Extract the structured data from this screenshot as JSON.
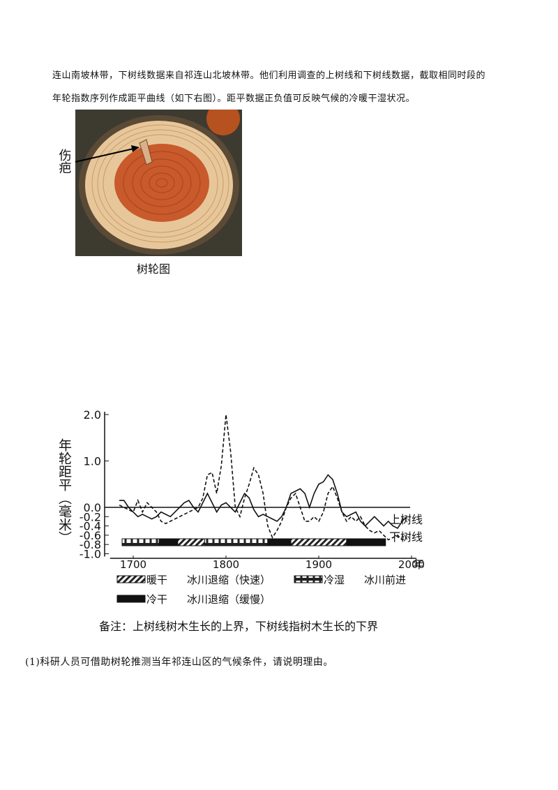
{
  "paragraphs": [
    "连山南坡林带，下树线数据来自祁连山北坡林带。他们利用调查的上树线和下树线数据，截取相同时段的",
    "年轮指数序列作成距平曲线（如下右图）。距平数据正负值可反映气候的冷暖干湿状况。"
  ],
  "photo": {
    "label": "伤疤",
    "caption": "树轮图"
  },
  "chart_data": {
    "type": "line",
    "y_label": "年轮距平（毫米）",
    "x_unit": "年",
    "xlim": [
      1675,
      2005
    ],
    "xticks": [
      1700,
      1800,
      1900,
      2000
    ],
    "ylim": [
      -1.0,
      2.0
    ],
    "yticks": [
      {
        "value": 2.0,
        "label": "2.0"
      },
      {
        "value": 1.0,
        "label": "1.0"
      },
      {
        "value": 0.0,
        "label": "0.0"
      },
      -0.2,
      -0.4,
      -0.6,
      -0.8,
      {
        "value": -1.0,
        "label": "-1.0"
      }
    ],
    "x": [
      1685,
      1690,
      1695,
      1700,
      1705,
      1710,
      1715,
      1720,
      1725,
      1730,
      1735,
      1740,
      1745,
      1750,
      1755,
      1760,
      1765,
      1770,
      1775,
      1780,
      1785,
      1790,
      1795,
      1800,
      1805,
      1810,
      1815,
      1820,
      1825,
      1830,
      1835,
      1840,
      1845,
      1850,
      1855,
      1860,
      1865,
      1870,
      1875,
      1880,
      1885,
      1890,
      1895,
      1900,
      1905,
      1910,
      1915,
      1920,
      1925,
      1930,
      1935,
      1940,
      1945,
      1950,
      1955,
      1960,
      1965,
      1970,
      1975,
      1980,
      1985,
      1990,
      1995
    ],
    "series": [
      {
        "name": "上树线",
        "color": "#111111",
        "dash": false,
        "values": [
          0.15,
          0.15,
          0.0,
          -0.1,
          -0.2,
          -0.15,
          -0.2,
          -0.25,
          -0.2,
          -0.1,
          -0.15,
          -0.2,
          -0.1,
          0.0,
          0.1,
          0.15,
          0.0,
          -0.1,
          0.1,
          0.3,
          0.1,
          -0.1,
          0.05,
          0.1,
          0.0,
          -0.1,
          0.1,
          0.3,
          0.2,
          -0.05,
          -0.2,
          -0.15,
          -0.2,
          -0.25,
          -0.3,
          -0.2,
          0.0,
          0.3,
          0.35,
          0.4,
          0.3,
          0.0,
          0.3,
          0.5,
          0.55,
          0.7,
          0.6,
          0.3,
          -0.1,
          -0.2,
          -0.15,
          -0.1,
          -0.3,
          -0.4,
          -0.3,
          -0.2,
          -0.3,
          -0.4,
          -0.3,
          -0.4,
          -0.45,
          -0.3,
          -0.2
        ]
      },
      {
        "name": "下树线",
        "color": "#111111",
        "dash": true,
        "values": [
          0.05,
          0.0,
          -0.05,
          -0.1,
          0.15,
          -0.1,
          0.1,
          0.0,
          -0.1,
          -0.3,
          -0.35,
          -0.3,
          -0.25,
          -0.2,
          -0.15,
          -0.1,
          -0.05,
          0.0,
          0.2,
          0.7,
          0.75,
          0.3,
          0.9,
          2.0,
          1.2,
          0.0,
          -0.2,
          0.2,
          0.5,
          0.85,
          0.7,
          0.3,
          -0.4,
          -0.65,
          -0.5,
          -0.3,
          0.0,
          0.2,
          0.3,
          0.0,
          -0.3,
          -0.3,
          -0.2,
          -0.3,
          -0.1,
          0.3,
          0.45,
          0.2,
          -0.1,
          -0.3,
          -0.2,
          -0.3,
          -0.2,
          -0.4,
          -0.5,
          -0.55,
          -0.5,
          -0.6,
          -0.7,
          -0.65,
          -0.6,
          -0.7,
          -0.65
        ]
      }
    ],
    "legend": [
      {
        "label": "暖干",
        "note": "冰川退缩（快速）",
        "pattern": "hatch"
      },
      {
        "label": "冷湿",
        "note": "冰川前进",
        "pattern": "squares"
      },
      {
        "label": "冷干",
        "note": "冰川退缩（缓慢）",
        "pattern": "solid"
      }
    ],
    "periods": [
      {
        "start": 1688,
        "end": 1728,
        "legend": 1
      },
      {
        "start": 1728,
        "end": 1748,
        "legend": 2
      },
      {
        "start": 1748,
        "end": 1777,
        "legend": 0
      },
      {
        "start": 1777,
        "end": 1845,
        "legend": 1
      },
      {
        "start": 1845,
        "end": 1870,
        "legend": 2
      },
      {
        "start": 1870,
        "end": 1930,
        "legend": 0
      },
      {
        "start": 1930,
        "end": 1972,
        "legend": 2
      }
    ],
    "note": "备注：上树线树木生长的上界，下树线指树木生长的下界"
  },
  "question": "(1)科研人员可借助树轮推测当年祁连山区的气候条件，请说明理由。"
}
